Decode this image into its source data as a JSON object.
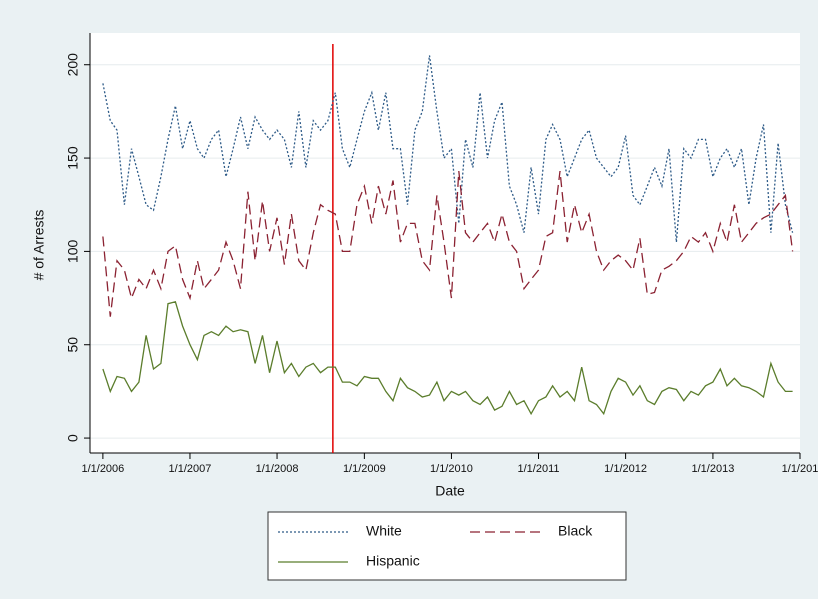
{
  "chart_data": {
    "type": "line",
    "x_label": "Date",
    "y_label": "# of Arrests",
    "x": [
      "1/1/2006",
      "2/1/2006",
      "3/1/2006",
      "4/1/2006",
      "5/1/2006",
      "6/1/2006",
      "7/1/2006",
      "8/1/2006",
      "9/1/2006",
      "10/1/2006",
      "11/1/2006",
      "12/1/2006",
      "1/1/2007",
      "2/1/2007",
      "3/1/2007",
      "4/1/2007",
      "5/1/2007",
      "6/1/2007",
      "7/1/2007",
      "8/1/2007",
      "9/1/2007",
      "10/1/2007",
      "11/1/2007",
      "12/1/2007",
      "1/1/2008",
      "2/1/2008",
      "3/1/2008",
      "4/1/2008",
      "5/1/2008",
      "6/1/2008",
      "7/1/2008",
      "8/1/2008",
      "9/1/2008",
      "10/1/2008",
      "11/1/2008",
      "12/1/2008",
      "1/1/2009",
      "2/1/2009",
      "3/1/2009",
      "4/1/2009",
      "5/1/2009",
      "6/1/2009",
      "7/1/2009",
      "8/1/2009",
      "9/1/2009",
      "10/1/2009",
      "11/1/2009",
      "12/1/2009",
      "1/1/2010",
      "2/1/2010",
      "3/1/2010",
      "4/1/2010",
      "5/1/2010",
      "6/1/2010",
      "7/1/2010",
      "8/1/2010",
      "9/1/2010",
      "10/1/2010",
      "11/1/2010",
      "12/1/2010",
      "1/1/2011",
      "2/1/2011",
      "3/1/2011",
      "4/1/2011",
      "5/1/2011",
      "6/1/2011",
      "7/1/2011",
      "8/1/2011",
      "9/1/2011",
      "10/1/2011",
      "11/1/2011",
      "12/1/2011",
      "1/1/2012",
      "2/1/2012",
      "3/1/2012",
      "4/1/2012",
      "5/1/2012",
      "6/1/2012",
      "7/1/2012",
      "8/1/2012",
      "9/1/2012",
      "10/1/2012",
      "11/1/2012",
      "12/1/2012",
      "1/1/2013",
      "2/1/2013",
      "3/1/2013",
      "4/1/2013",
      "5/1/2013",
      "6/1/2013",
      "7/1/2013",
      "8/1/2013",
      "9/1/2013",
      "10/1/2013",
      "11/1/2013",
      "12/1/2013"
    ],
    "series": [
      {
        "name": "White",
        "color": "#2e5b88",
        "dash": "2 2",
        "values": [
          190,
          170,
          165,
          125,
          155,
          140,
          125,
          122,
          140,
          160,
          178,
          155,
          170,
          155,
          150,
          160,
          165,
          140,
          155,
          172,
          155,
          172,
          165,
          160,
          165,
          160,
          145,
          175,
          145,
          170,
          165,
          170,
          185,
          155,
          145,
          160,
          175,
          185,
          165,
          185,
          155,
          155,
          125,
          165,
          175,
          205,
          175,
          150,
          155,
          115,
          160,
          145,
          185,
          150,
          170,
          180,
          135,
          125,
          110,
          145,
          120,
          160,
          168,
          160,
          140,
          150,
          160,
          165,
          150,
          145,
          140,
          145,
          162,
          130,
          125,
          135,
          145,
          135,
          155,
          105,
          155,
          150,
          160,
          160,
          140,
          150,
          155,
          145,
          155,
          125,
          150,
          168,
          110,
          158,
          125,
          110
        ]
      },
      {
        "name": "Black",
        "color": "#8b2232",
        "dash": "10 5",
        "values": [
          108,
          65,
          95,
          90,
          75,
          85,
          80,
          90,
          80,
          100,
          103,
          85,
          75,
          95,
          80,
          85,
          90,
          105,
          95,
          80,
          132,
          95,
          127,
          100,
          118,
          93,
          120,
          95,
          90,
          110,
          125,
          122,
          120,
          100,
          100,
          125,
          135,
          115,
          135,
          120,
          138,
          105,
          115,
          115,
          95,
          90,
          130,
          105,
          75,
          143,
          110,
          105,
          110,
          115,
          105,
          120,
          105,
          100,
          80,
          85,
          90,
          108,
          110,
          143,
          105,
          125,
          110,
          120,
          100,
          90,
          95,
          98,
          95,
          90,
          107,
          77,
          78,
          90,
          92,
          95,
          100,
          108,
          105,
          110,
          100,
          115,
          105,
          125,
          105,
          110,
          115,
          118,
          120,
          125,
          130,
          100
        ]
      },
      {
        "name": "Hispanic",
        "color": "#5b7d2c",
        "dash": "none",
        "values": [
          37,
          25,
          33,
          32,
          25,
          30,
          55,
          37,
          40,
          72,
          73,
          60,
          50,
          42,
          55,
          57,
          55,
          60,
          57,
          58,
          57,
          40,
          55,
          35,
          52,
          35,
          40,
          33,
          38,
          40,
          35,
          38,
          38,
          30,
          30,
          28,
          33,
          32,
          32,
          25,
          20,
          32,
          27,
          25,
          22,
          23,
          30,
          20,
          25,
          23,
          25,
          20,
          18,
          22,
          15,
          17,
          25,
          18,
          20,
          13,
          20,
          22,
          28,
          22,
          25,
          20,
          38,
          20,
          18,
          13,
          25,
          32,
          30,
          23,
          28,
          20,
          18,
          25,
          27,
          26,
          20,
          25,
          23,
          28,
          30,
          37,
          28,
          32,
          28,
          27,
          25,
          22,
          40,
          30,
          25,
          25
        ]
      }
    ],
    "xlim": [
      "11/8/2005",
      "1/1/2014"
    ],
    "xticks": [
      "1/1/2006",
      "1/1/2007",
      "1/1/2008",
      "1/1/2009",
      "1/1/2010",
      "1/1/2011",
      "1/1/2012",
      "1/1/2013",
      {
        "value": "1/1/2014",
        "label": "1/1/201"
      }
    ],
    "ylim": [
      -8,
      217
    ],
    "yticks": [
      0,
      50,
      100,
      150,
      200
    ],
    "grid": true,
    "vline": {
      "x": "8/22/2008",
      "color": "#e00000"
    },
    "legend": "bottom"
  }
}
